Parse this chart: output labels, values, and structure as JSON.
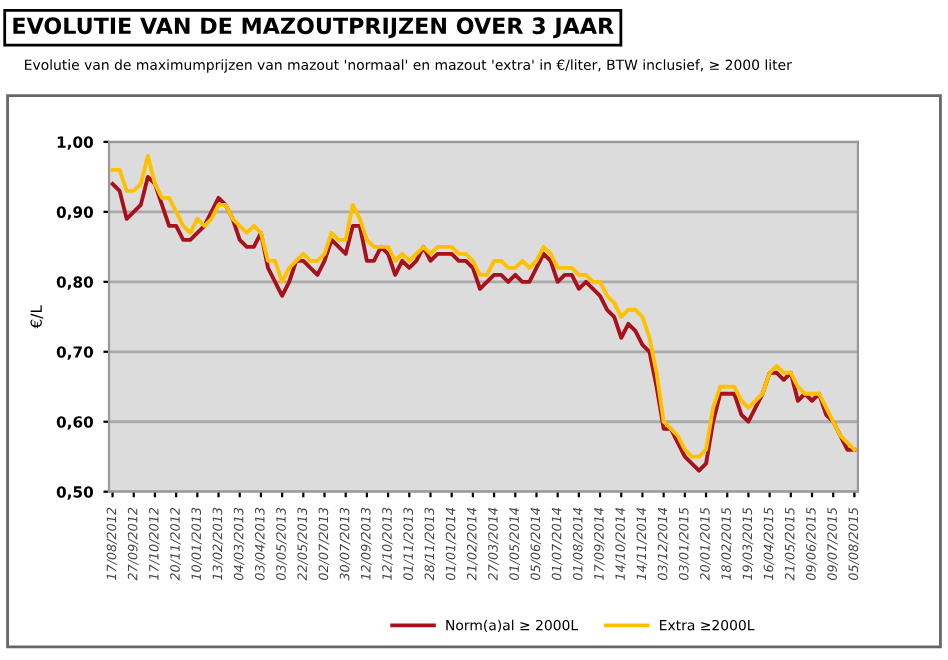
{
  "chart_data": {
    "type": "line",
    "title": "EVOLUTIE VAN DE MAZOUTPRIJZEN OVER 3 JAAR",
    "subtitle": "Evolutie van de maximumprijzen van mazout 'normaal' en mazout 'extra' in €/liter, BTW inclusief, ≥ 2000 liter",
    "ylabel": "€/L",
    "categories": [
      "17/08/2012",
      null,
      null,
      "27/09/2012",
      null,
      null,
      "17/10/2012",
      null,
      null,
      "20/11/2012",
      null,
      null,
      "10/01/2013",
      null,
      null,
      "13/02/2013",
      null,
      null,
      "04/03/2013",
      null,
      null,
      "03/04/2013",
      null,
      null,
      "03/05/2013",
      null,
      null,
      "22/05/2013",
      null,
      null,
      "02/07/2013",
      null,
      null,
      "30/07/2013",
      null,
      null,
      "12/09/2013",
      null,
      null,
      "12/10/2013",
      null,
      null,
      "01/11/2013",
      null,
      null,
      "28/11/2013",
      null,
      null,
      "01/01/2014",
      null,
      null,
      "21/02/2014",
      null,
      null,
      "27/03/2014",
      null,
      null,
      "01/05/2014",
      null,
      null,
      "05/06/2014",
      null,
      null,
      "01/07/2014",
      null,
      null,
      "01/08/2014",
      null,
      null,
      "17/09/2014",
      null,
      null,
      "14/10/2014",
      null,
      null,
      "14/11/2014",
      null,
      null,
      "03/12/2014",
      null,
      null,
      "03/01/2015",
      null,
      null,
      "20/01/2015",
      null,
      null,
      "18/02/2015",
      null,
      null,
      "19/03/2015",
      null,
      null,
      "16/04/2015",
      null,
      null,
      "21/05/2015",
      null,
      null,
      "09/06/2015",
      null,
      null,
      "09/07/2015",
      null,
      null,
      "05/08/2015"
    ],
    "series": [
      {
        "name": "Norm(a)al ≥ 2000L",
        "color": "#a8101a",
        "values": [
          0.94,
          0.93,
          0.89,
          0.9,
          0.91,
          0.95,
          0.94,
          0.91,
          0.88,
          0.88,
          0.86,
          0.86,
          0.87,
          0.88,
          0.9,
          0.92,
          0.91,
          0.89,
          0.86,
          0.85,
          0.85,
          0.87,
          0.82,
          0.8,
          0.78,
          0.8,
          0.83,
          0.83,
          0.82,
          0.81,
          0.83,
          0.86,
          0.85,
          0.84,
          0.88,
          0.88,
          0.83,
          0.83,
          0.85,
          0.84,
          0.81,
          0.83,
          0.82,
          0.83,
          0.85,
          0.83,
          0.84,
          0.84,
          0.84,
          0.83,
          0.83,
          0.82,
          0.79,
          0.8,
          0.81,
          0.81,
          0.8,
          0.81,
          0.8,
          0.8,
          0.82,
          0.84,
          0.83,
          0.8,
          0.81,
          0.81,
          0.79,
          0.8,
          0.79,
          0.78,
          0.76,
          0.75,
          0.72,
          0.74,
          0.73,
          0.71,
          0.7,
          0.65,
          0.59,
          0.59,
          0.57,
          0.55,
          0.54,
          0.53,
          0.54,
          0.6,
          0.64,
          0.64,
          0.64,
          0.61,
          0.6,
          0.62,
          0.64,
          0.67,
          0.67,
          0.66,
          0.67,
          0.63,
          0.64,
          0.63,
          0.64,
          0.61,
          0.6,
          0.58,
          0.56,
          0.56
        ]
      },
      {
        "name": "Extra ≥2000L",
        "color": "#ffc000",
        "values": [
          0.96,
          0.96,
          0.93,
          0.93,
          0.94,
          0.98,
          0.94,
          0.92,
          0.92,
          0.9,
          0.88,
          0.87,
          0.89,
          0.88,
          0.89,
          0.91,
          0.91,
          0.89,
          0.88,
          0.87,
          0.88,
          0.87,
          0.83,
          0.83,
          0.8,
          0.82,
          0.83,
          0.84,
          0.83,
          0.83,
          0.84,
          0.87,
          0.86,
          0.86,
          0.91,
          0.89,
          0.86,
          0.85,
          0.85,
          0.85,
          0.83,
          0.84,
          0.83,
          0.84,
          0.85,
          0.84,
          0.85,
          0.85,
          0.85,
          0.84,
          0.84,
          0.83,
          0.81,
          0.81,
          0.83,
          0.83,
          0.82,
          0.82,
          0.83,
          0.82,
          0.83,
          0.85,
          0.84,
          0.82,
          0.82,
          0.82,
          0.81,
          0.81,
          0.8,
          0.8,
          0.78,
          0.77,
          0.75,
          0.76,
          0.76,
          0.75,
          0.72,
          0.67,
          0.6,
          0.59,
          0.58,
          0.56,
          0.55,
          0.55,
          0.56,
          0.62,
          0.65,
          0.65,
          0.65,
          0.63,
          0.62,
          0.63,
          0.64,
          0.67,
          0.68,
          0.67,
          0.67,
          0.65,
          0.64,
          0.64,
          0.64,
          0.62,
          0.6,
          0.58,
          0.57,
          0.56
        ]
      }
    ],
    "ylim": [
      0.5,
      1.0
    ],
    "yticks": [
      {
        "value": 0.5,
        "label": "0,50"
      },
      {
        "value": 0.6,
        "label": "0,60"
      },
      {
        "value": 0.7,
        "label": "0,70"
      },
      {
        "value": 0.8,
        "label": "0,80"
      },
      {
        "value": 0.9,
        "label": "0,90"
      },
      {
        "value": 1.0,
        "label": "1,00"
      }
    ],
    "grid": "y",
    "legend": "bottom",
    "marker": "none",
    "line_style": "solid"
  }
}
